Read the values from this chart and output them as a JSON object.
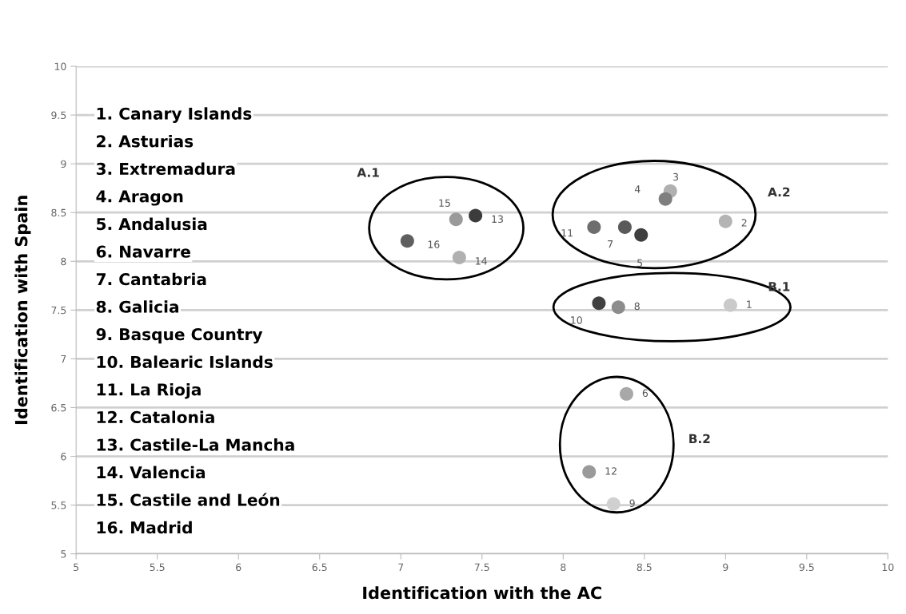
{
  "chart_data": {
    "type": "scatter",
    "xlabel": "Identification with the AC",
    "ylabel": "Identification with Spain",
    "xlim": [
      5,
      10
    ],
    "ylim": [
      5,
      10
    ],
    "xticks": [
      5,
      5.5,
      6,
      6.5,
      7,
      7.5,
      8,
      8.5,
      9,
      9.5,
      10
    ],
    "yticks": [
      5,
      5.5,
      6,
      6.5,
      7,
      7.5,
      8,
      8.5,
      9,
      9.5,
      10
    ],
    "grid": "y",
    "marker": "circle",
    "series": [
      {
        "x": [
          9.03,
          9.0,
          8.66,
          8.63,
          8.48,
          8.39,
          8.38,
          8.34,
          8.31,
          8.22,
          8.19,
          8.16,
          7.46,
          7.36,
          7.34,
          7.04
        ],
        "values": [
          7.55,
          8.41,
          8.72,
          8.64,
          8.27,
          6.64,
          8.35,
          7.53,
          5.51,
          7.57,
          8.35,
          5.84,
          8.47,
          8.04,
          8.43,
          8.21
        ],
        "colors": [
          "#cacaca",
          "#b4b4b4",
          "#b0b0b0",
          "#7f7f7f",
          "#3f3f3f",
          "#a8a8a8",
          "#5a5a5a",
          "#8c8c8c",
          "#d0d0d0",
          "#404040",
          "#6e6e6e",
          "#9a9a9a",
          "#3c3c3c",
          "#b0b0b0",
          "#9a9a9a",
          "#5f5f5f"
        ]
      }
    ],
    "annotations": [
      "1. Canary Islands",
      "2. Asturias",
      "3. Extremadura",
      "4. Aragon",
      "5. Andalusia",
      "6. Navarre",
      "7. Cantabria",
      "8. Galicia",
      "9. Basque Country",
      "10. Balearic Islands",
      "11. La Rioja",
      "12. Catalonia",
      "13. Castile-La Mancha",
      "14. Valencia",
      "15. Castile and León",
      "16. Madrid",
      "A.1",
      "A.2",
      "B.1",
      "B.2",
      {
        "text": "1",
        "x": 9.03,
        "y": 7.55
      },
      {
        "text": "2",
        "x": 9.0,
        "y": 8.41
      },
      {
        "text": "3",
        "x": 8.66,
        "y": 8.72
      },
      {
        "text": "4",
        "x": 8.63,
        "y": 8.64
      },
      {
        "text": "5",
        "x": 8.48,
        "y": 8.27
      },
      {
        "text": "6",
        "x": 8.39,
        "y": 6.64
      },
      {
        "text": "7",
        "x": 8.38,
        "y": 8.35
      },
      {
        "text": "8",
        "x": 8.34,
        "y": 7.53
      },
      {
        "text": "9",
        "x": 8.31,
        "y": 5.51
      },
      {
        "text": "10",
        "x": 8.22,
        "y": 7.57
      },
      {
        "text": "11",
        "x": 8.19,
        "y": 8.35
      },
      {
        "text": "12",
        "x": 8.16,
        "y": 5.84
      },
      {
        "text": "13",
        "x": 7.46,
        "y": 8.47
      },
      {
        "text": "14",
        "x": 7.36,
        "y": 8.04
      },
      {
        "text": "15",
        "x": 7.34,
        "y": 8.43
      },
      {
        "text": "16",
        "x": 7.04,
        "y": 8.21
      }
    ]
  }
}
